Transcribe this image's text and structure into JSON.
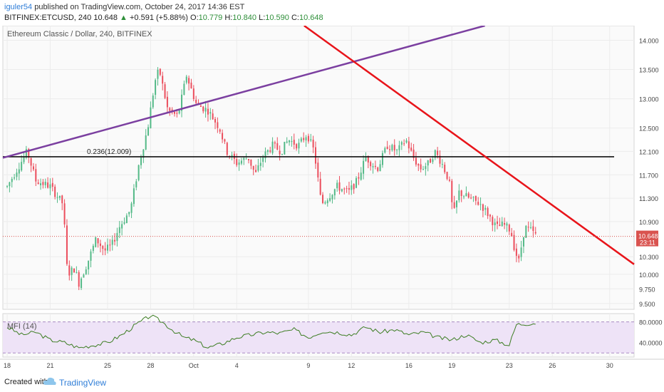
{
  "header": {
    "user": "iguler54",
    "published_text": "published on TradingView.com, October 24, 2017 14:36 EST",
    "symbol": "BITFINEX:ETCUSD, 240",
    "last": "10.648",
    "change": "+0.591 (+5.88%)",
    "o_label": "O:",
    "o_value": "10.779",
    "h_label": "H:",
    "h_value": "10.840",
    "l_label": "L:",
    "l_value": "10.590",
    "c_label": "C:",
    "c_value": "10.648"
  },
  "footer": {
    "created_with": "Created with",
    "brand": "TradingView"
  },
  "colors": {
    "bull": "#53b987",
    "bear": "#eb4d5c",
    "trend_purple": "#7b3fa0",
    "trend_red": "#e8141a",
    "fib_line": "#111111",
    "price_tag": "#d9534f",
    "mfi_line": "#3c7d22",
    "mfi_band": "#eee3f7"
  },
  "chart_data": [
    {
      "type": "candlestick",
      "title": "Ethereum Classic / Dollar, 240, BITFINEX",
      "yticks": [
        "14.000",
        "13.500",
        "13.000",
        "12.500",
        "12.100",
        "11.700",
        "11.300",
        "10.900",
        "10.300",
        "10.000",
        "9.750",
        "9.500"
      ],
      "ytick_values": [
        14.0,
        13.5,
        13.0,
        12.5,
        12.1,
        11.7,
        11.3,
        10.9,
        10.3,
        10.0,
        9.75,
        9.5
      ],
      "ylim": [
        9.4,
        14.25
      ],
      "xticks": [
        "18",
        "21",
        "25",
        "28",
        "Oct",
        "4",
        "9",
        "12",
        "16",
        "19",
        "23",
        "26",
        "30"
      ],
      "xtick_days": [
        0,
        3,
        7,
        10,
        13,
        16,
        21,
        24,
        28,
        31,
        35,
        38,
        42
      ],
      "xlim": [
        -0.3,
        43.7
      ],
      "current_price": "10.648",
      "current_price_value": 10.648,
      "countdown": "23:11",
      "fib_label": "0.236(12.009)",
      "fib_level": 12.009,
      "trendlines": [
        {
          "color": "purple",
          "from": [
            -0.3,
            11.99
          ],
          "to": [
            33.3,
            14.25
          ]
        },
        {
          "color": "red",
          "from": [
            20.7,
            14.25
          ],
          "to": [
            43.7,
            10.17
          ]
        }
      ],
      "anchors": [
        [
          0,
          11.5
        ],
        [
          1.4,
          12.1
        ],
        [
          2,
          11.6
        ],
        [
          3,
          11.5
        ],
        [
          3.9,
          11.2
        ],
        [
          4.2,
          10.0
        ],
        [
          4.7,
          10.1
        ],
        [
          5,
          9.85
        ],
        [
          5.6,
          10.2
        ],
        [
          6.2,
          10.6
        ],
        [
          6.8,
          10.4
        ],
        [
          7.3,
          10.5
        ],
        [
          7.8,
          10.8
        ],
        [
          8.6,
          11.1
        ],
        [
          9.2,
          11.9
        ],
        [
          9.8,
          12.5
        ],
        [
          10.3,
          13.3
        ],
        [
          10.6,
          13.5
        ],
        [
          11.2,
          12.8
        ],
        [
          11.9,
          12.7
        ],
        [
          12.5,
          13.4
        ],
        [
          13.2,
          12.9
        ],
        [
          14,
          12.8
        ],
        [
          14.8,
          12.5
        ],
        [
          15.3,
          12.1
        ],
        [
          16,
          11.9
        ],
        [
          16.8,
          12.0
        ],
        [
          17.3,
          11.7
        ],
        [
          17.8,
          12.0
        ],
        [
          18.5,
          12.2
        ],
        [
          19.1,
          12.1
        ],
        [
          19.6,
          12.3
        ],
        [
          20.3,
          12.2
        ],
        [
          20.9,
          12.4
        ],
        [
          21.4,
          12.1
        ],
        [
          21.9,
          11.2
        ],
        [
          22.3,
          11.3
        ],
        [
          23,
          11.5
        ],
        [
          23.8,
          11.4
        ],
        [
          24.4,
          11.6
        ],
        [
          25,
          12.0
        ],
        [
          25.8,
          11.8
        ],
        [
          26.5,
          12.2
        ],
        [
          27.2,
          12.1
        ],
        [
          27.8,
          12.3
        ],
        [
          28.3,
          12.0
        ],
        [
          28.8,
          11.8
        ],
        [
          29.4,
          11.9
        ],
        [
          29.8,
          12.1
        ],
        [
          30.3,
          11.9
        ],
        [
          30.8,
          11.6
        ],
        [
          31.1,
          11.0
        ],
        [
          31.5,
          11.4
        ],
        [
          32.2,
          11.3
        ],
        [
          33,
          11.2
        ],
        [
          33.6,
          11.0
        ],
        [
          34.1,
          10.8
        ],
        [
          34.6,
          10.85
        ],
        [
          35.1,
          10.75
        ],
        [
          35.4,
          10.4
        ],
        [
          35.7,
          10.2
        ],
        [
          35.9,
          10.6
        ],
        [
          36.1,
          10.8
        ],
        [
          36.5,
          10.75
        ],
        [
          36.9,
          10.648
        ]
      ]
    },
    {
      "type": "line",
      "title": "MFI (14)",
      "yticks": [
        "80.0000",
        "40.0000"
      ],
      "ytick_values": [
        80,
        40
      ],
      "ylim": [
        12,
        96
      ],
      "band": [
        20,
        80
      ],
      "series": [
        {
          "points": [
            [
              0,
              70
            ],
            [
              1,
              55
            ],
            [
              2,
              60
            ],
            [
              3,
              45
            ],
            [
              4,
              40
            ],
            [
              5,
              30
            ],
            [
              6,
              35
            ],
            [
              7,
              40
            ],
            [
              8,
              55
            ],
            [
              9,
              75
            ],
            [
              10,
              92
            ],
            [
              10.8,
              80
            ],
            [
              11.5,
              65
            ],
            [
              12.3,
              50
            ],
            [
              13,
              45
            ],
            [
              14,
              30
            ],
            [
              15,
              38
            ],
            [
              16,
              50
            ],
            [
              17,
              55
            ],
            [
              18,
              60
            ],
            [
              19,
              58
            ],
            [
              20,
              65
            ],
            [
              21,
              50
            ],
            [
              22,
              62
            ],
            [
              23,
              60
            ],
            [
              24,
              55
            ],
            [
              25,
              70
            ],
            [
              26,
              60
            ],
            [
              27,
              65
            ],
            [
              28,
              55
            ],
            [
              29,
              60
            ],
            [
              30,
              50
            ],
            [
              31,
              45
            ],
            [
              32,
              55
            ],
            [
              33,
              40
            ],
            [
              34,
              45
            ],
            [
              35,
              35
            ],
            [
              35.5,
              75
            ],
            [
              36.9,
              78
            ]
          ]
        }
      ]
    }
  ]
}
